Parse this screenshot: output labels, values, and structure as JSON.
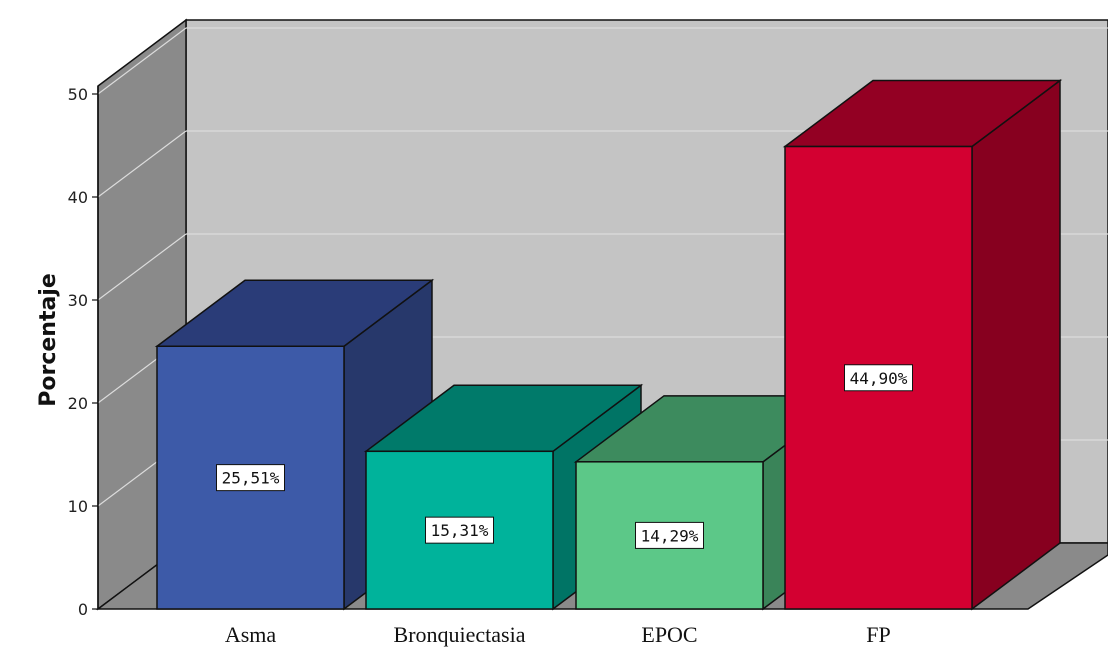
{
  "chart_data": {
    "type": "bar",
    "style": "3d",
    "categories": [
      "Asma",
      "Bronquiectasia",
      "EPOC",
      "FP"
    ],
    "values": [
      25.51,
      15.31,
      14.29,
      44.9
    ],
    "data_labels": [
      "25,51%",
      "15,31%",
      "14,29%",
      "44,90%"
    ],
    "colors": {
      "front": [
        "#3d5aa8",
        "#00b39b",
        "#5cc888",
        "#d30031"
      ],
      "top": [
        "#2a3c78",
        "#007a6a",
        "#3d8b5e",
        "#930023"
      ],
      "side": [
        "#27386b",
        "#007465",
        "#3a8459",
        "#87001f"
      ],
      "wall_back": "#c4c4c4",
      "wall_side": "#8a8a8a",
      "floor": "#8a8a8a",
      "gridline": "#dcdcdc"
    },
    "title": "",
    "xlabel": "",
    "ylabel": "Porcentaje",
    "ylim": [
      0,
      50
    ],
    "yticks": [
      0,
      10,
      20,
      30,
      40,
      50
    ],
    "grid": true,
    "legend": "none"
  }
}
